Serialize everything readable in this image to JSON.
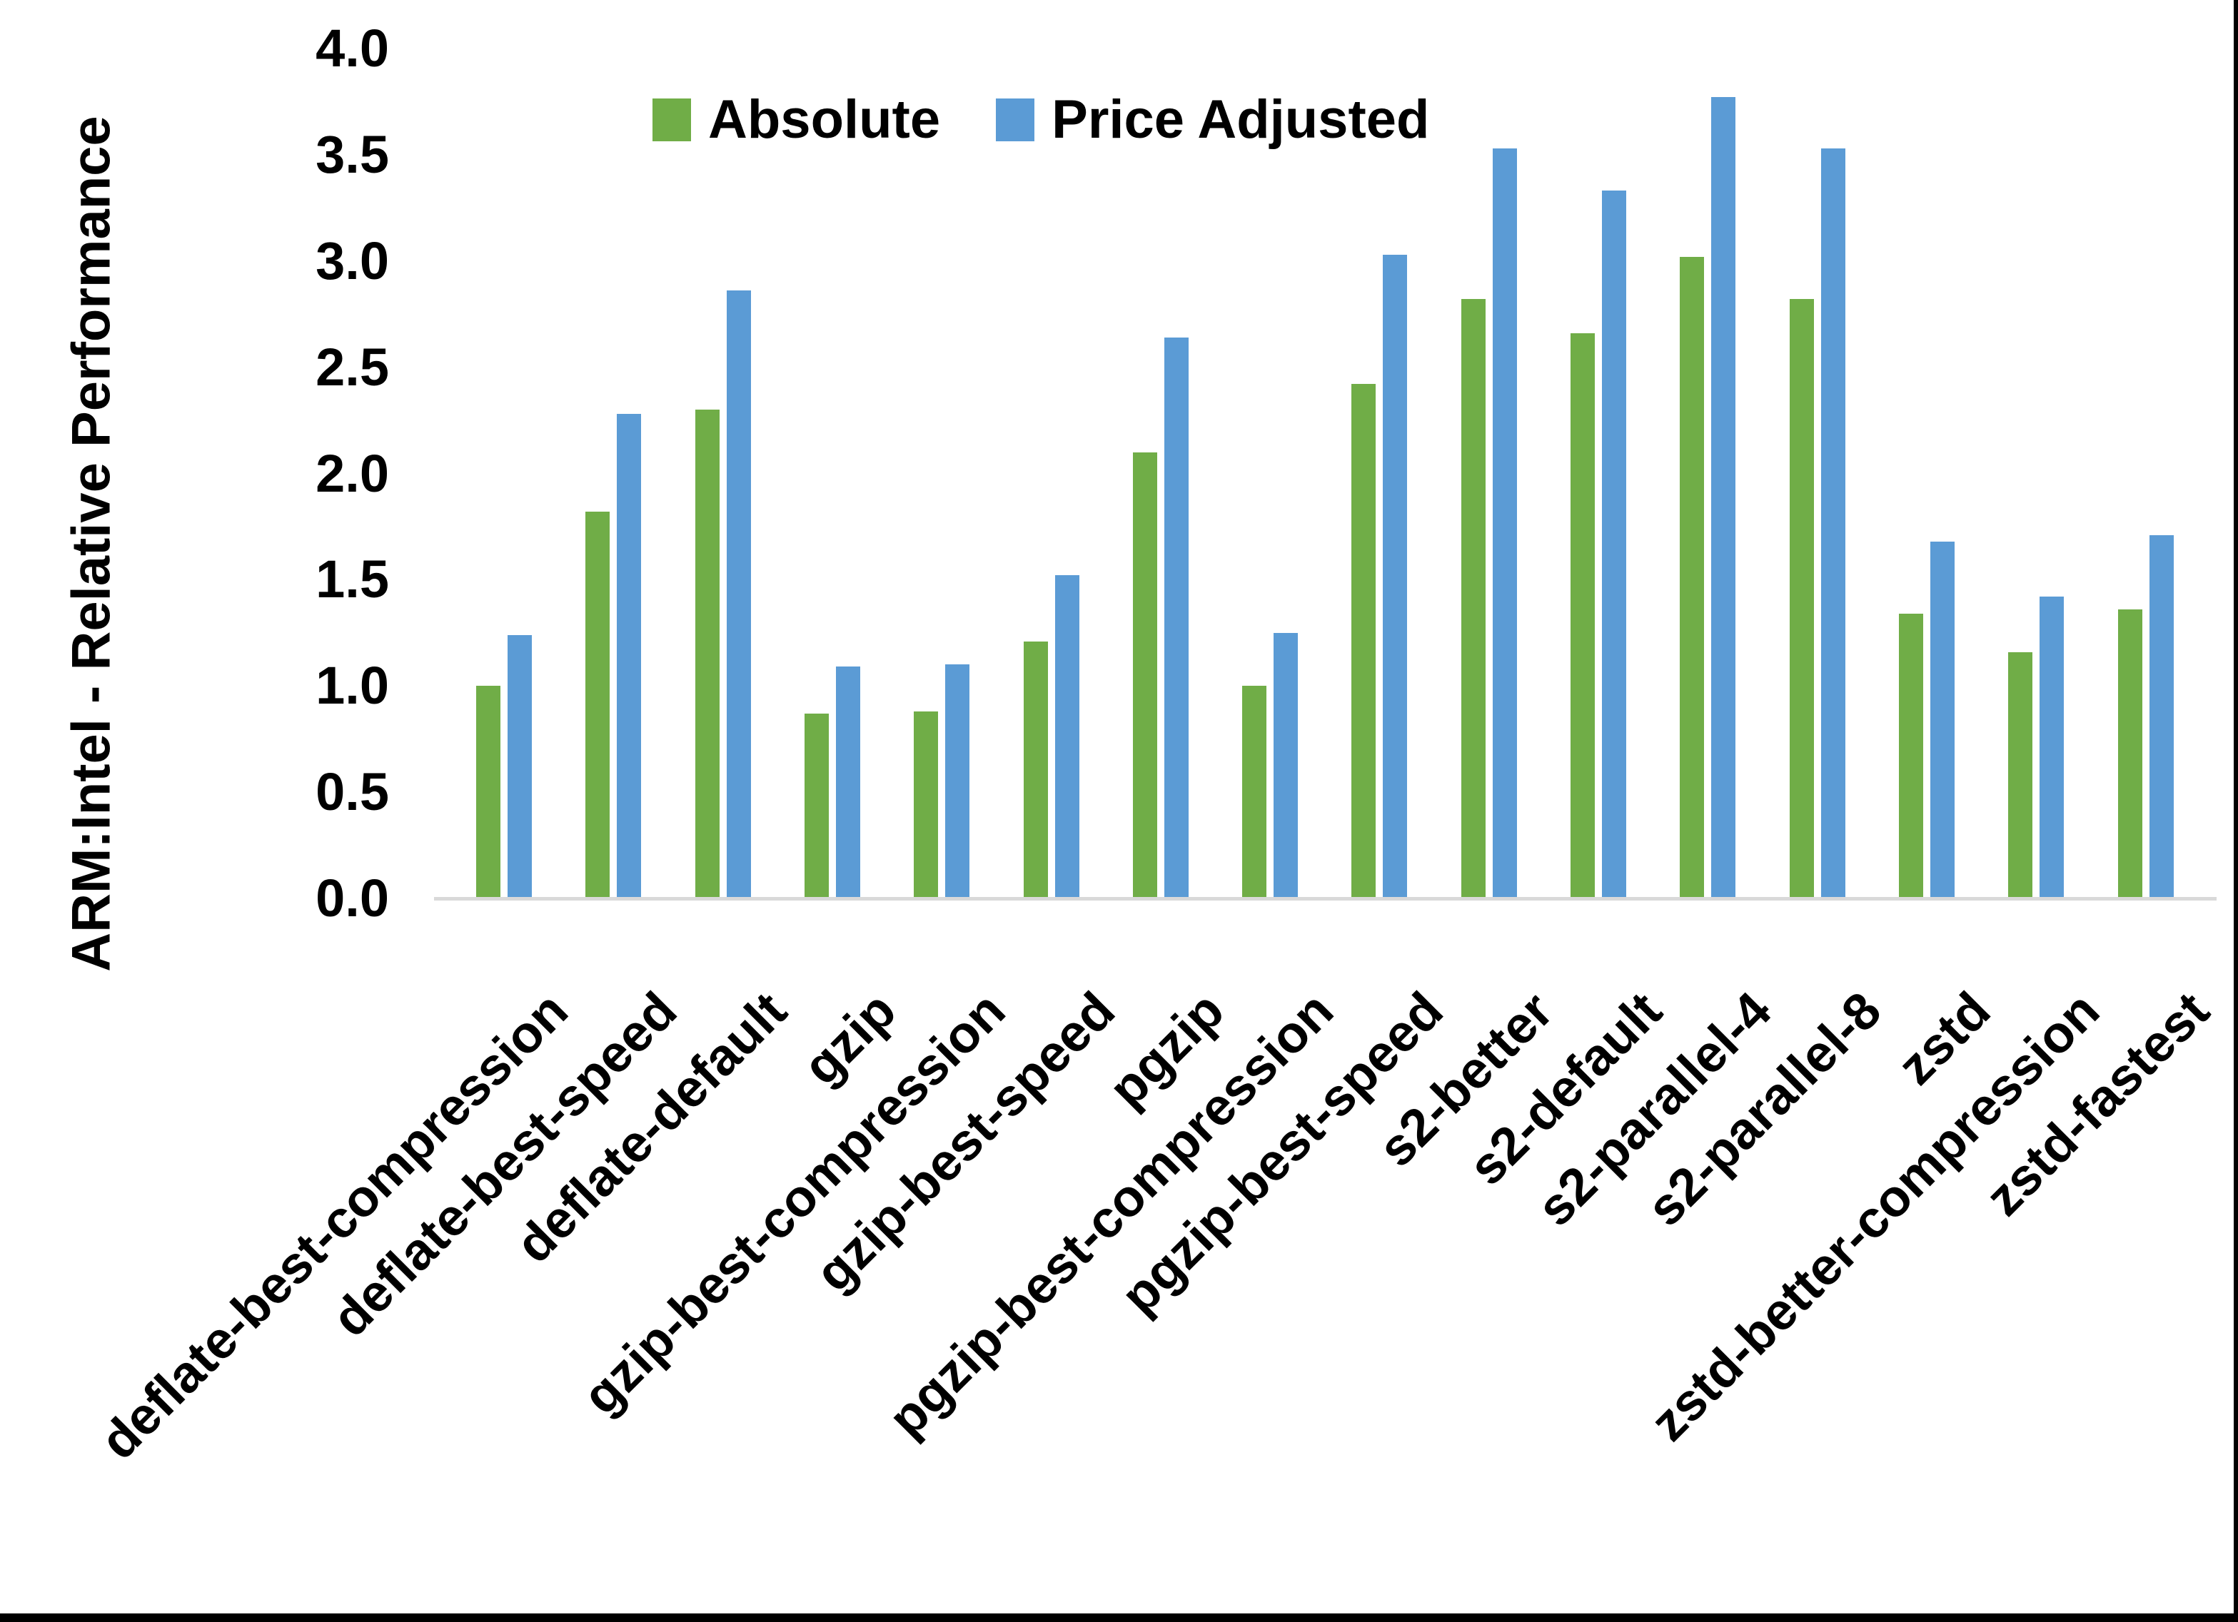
{
  "chart_data": {
    "type": "bar",
    "title": "",
    "xlabel": "",
    "ylabel": "ARM:Intel - Relative Performance",
    "ylim": [
      0.0,
      4.0
    ],
    "ytick_step": 0.5,
    "yticks": [
      "4.0",
      "3.5",
      "3.0",
      "2.5",
      "2.0",
      "1.5",
      "1.0",
      "0.5",
      "0.0"
    ],
    "grid": false,
    "legend_position": "top-center",
    "axis_line_color": "#D9D9D9",
    "text_color": "#000000",
    "categories": [
      "deflate-best-compression",
      "deflate-best-speed",
      "deflate-default",
      "gzip",
      "gzip-best-compression",
      "gzip-best-speed",
      "pgzip",
      "pgzip-best-compression",
      "pgzip-best-speed",
      "s2-better",
      "s2-default",
      "s2-parallel-4",
      "s2-parallel-8",
      "zstd",
      "zstd-better-compression",
      "zstd-fastest"
    ],
    "series": [
      {
        "name": "Absolute",
        "color": "#70AD47",
        "values": [
          1.0,
          1.82,
          2.3,
          0.87,
          0.88,
          1.21,
          2.1,
          1.0,
          2.42,
          2.82,
          2.66,
          3.02,
          2.82,
          1.34,
          1.16,
          1.36
        ]
      },
      {
        "name": "Price Adjusted",
        "color": "#5B9BD5",
        "values": [
          1.24,
          2.28,
          2.86,
          1.09,
          1.1,
          1.52,
          2.64,
          1.25,
          3.03,
          3.53,
          3.33,
          3.77,
          3.53,
          1.68,
          1.42,
          1.71
        ]
      }
    ]
  },
  "window": {
    "background": "#FFFFFF",
    "border_color": "#000000"
  }
}
